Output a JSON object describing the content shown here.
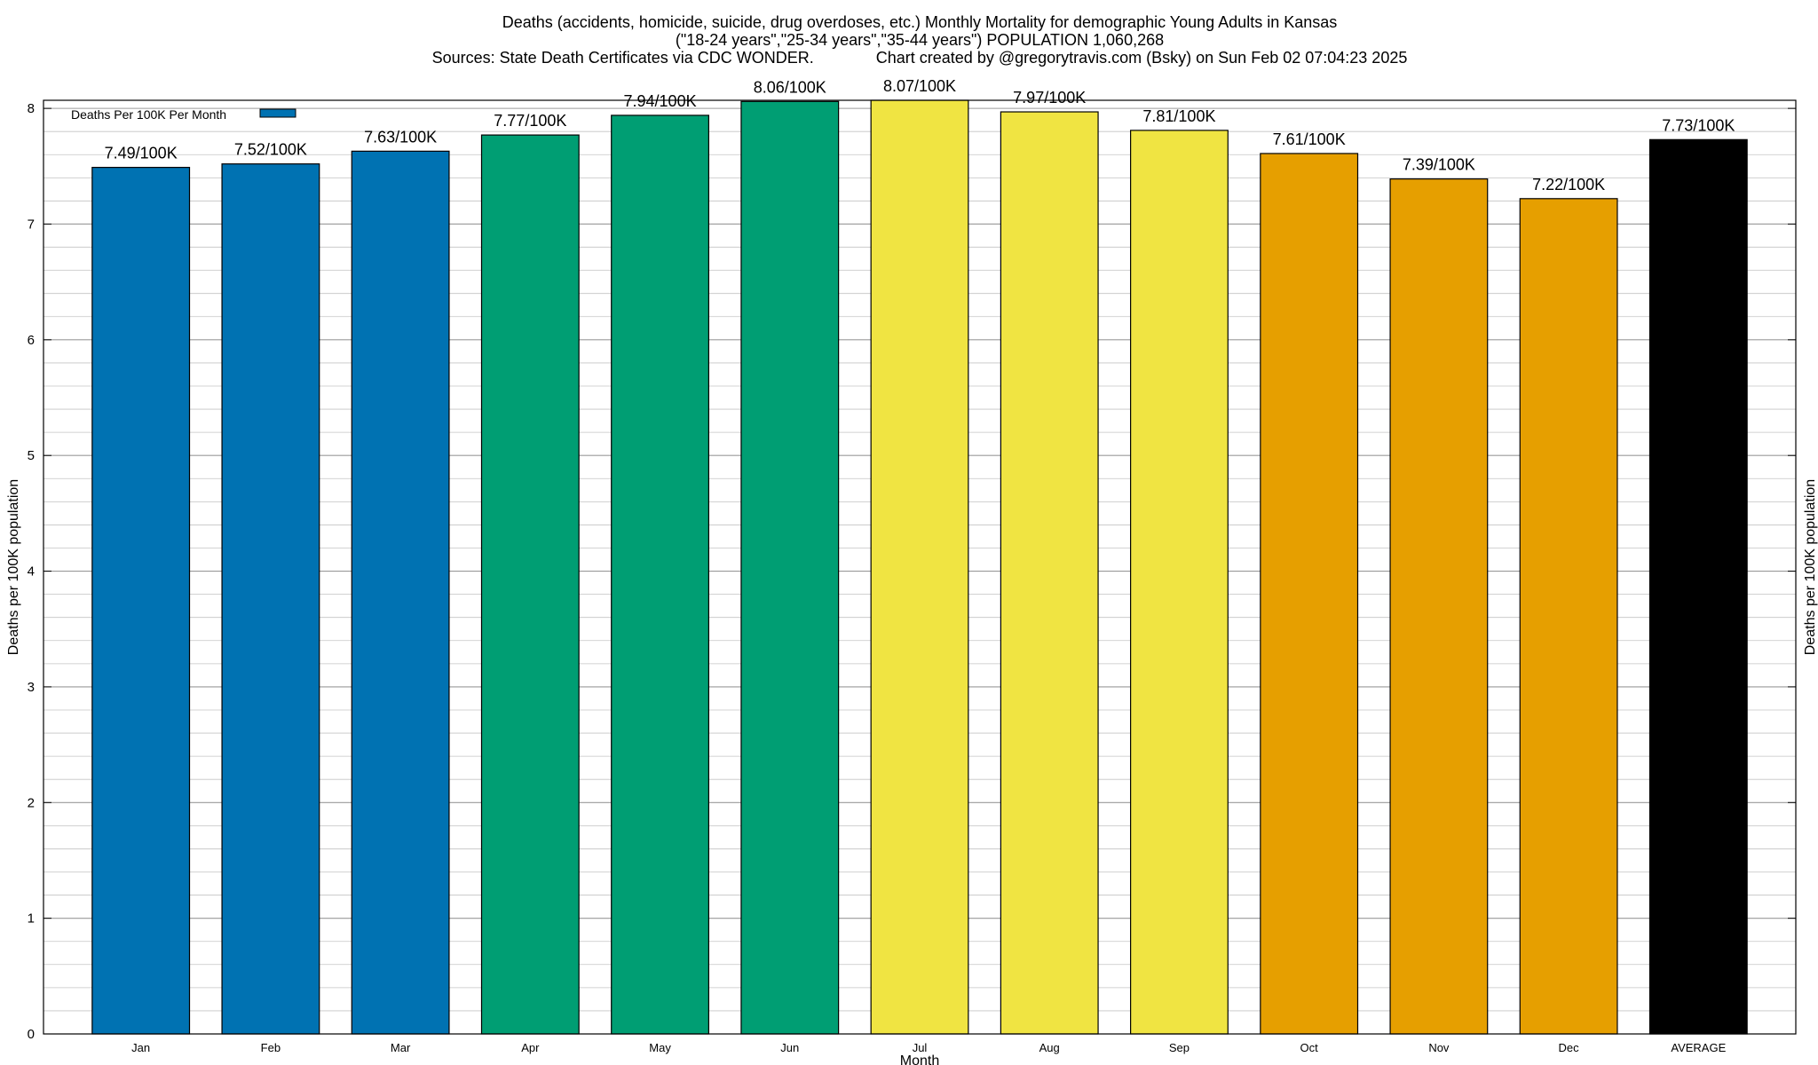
{
  "title": {
    "line1": "Deaths (accidents, homicide, suicide, drug overdoses, etc.) Monthly Mortality for demographic Young Adults in Kansas",
    "line2": "(\"18-24 years\",\"25-34 years\",\"35-44 years\") POPULATION 1,060,268",
    "line3": "Sources: State Death Certificates via CDC WONDER.              Chart created by @gregorytravis.com (Bsky) on Sun Feb 02 07:04:23 2025"
  },
  "legend": {
    "label": "Deaths Per 100K Per Month",
    "color": "#0072b2",
    "placement": "top-left"
  },
  "chart_data": {
    "type": "bar",
    "categories": [
      "Jan",
      "Feb",
      "Mar",
      "Apr",
      "May",
      "Jun",
      "Jul",
      "Aug",
      "Sep",
      "Oct",
      "Nov",
      "Dec",
      "AVERAGE"
    ],
    "values": [
      7.49,
      7.52,
      7.63,
      7.77,
      7.94,
      8.06,
      8.07,
      7.97,
      7.81,
      7.61,
      7.39,
      7.22,
      7.73
    ],
    "data_labels": [
      "7.49/100K",
      "7.52/100K",
      "7.63/100K",
      "7.77/100K",
      "7.94/100K",
      "8.06/100K",
      "8.07/100K",
      "7.97/100K",
      "7.81/100K",
      "7.61/100K",
      "7.39/100K",
      "7.22/100K",
      "7.73/100K"
    ],
    "colors": [
      "#0072b2",
      "#0072b2",
      "#0072b2",
      "#009e73",
      "#009e73",
      "#009e73",
      "#f0e442",
      "#f0e442",
      "#f0e442",
      "#e69f00",
      "#e69f00",
      "#e69f00",
      "#000000"
    ],
    "xlabel": "Month",
    "ylabel": "Deaths per 100K population",
    "y2label": "Deaths per 100K population",
    "ylim": [
      0,
      8.07
    ],
    "yticks": [
      0,
      1,
      2,
      3,
      4,
      5,
      6,
      7,
      8
    ],
    "minor_grid_step": 0.2,
    "grid": true
  }
}
